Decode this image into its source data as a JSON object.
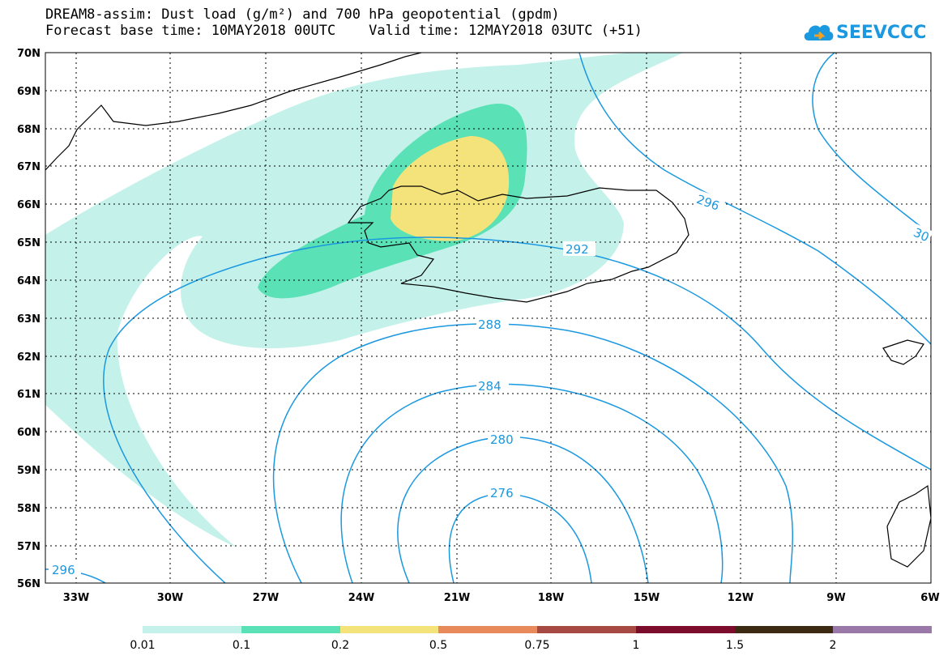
{
  "title_line1": "DREAM8-assim: Dust load (g/m²) and 700 hPa geopotential (gpdm)",
  "title_line2": "Forecast base time: 10MAY2018 00UTC    Valid time: 12MAY2018 03UTC (+51)",
  "logo_text": "SEEVCCC",
  "lat_labels": [
    "70N",
    "69N",
    "68N",
    "67N",
    "66N",
    "65N",
    "64N",
    "63N",
    "62N",
    "61N",
    "60N",
    "59N",
    "58N",
    "57N",
    "56N"
  ],
  "lon_labels": [
    "33W",
    "30W",
    "27W",
    "24W",
    "21W",
    "18W",
    "15W",
    "12W",
    "9W",
    "6W"
  ],
  "contour_labels": [
    "296",
    "292",
    "288",
    "284",
    "280",
    "276",
    "296",
    "30"
  ],
  "colorbar": {
    "labels": [
      "0.01",
      "0.1",
      "0.2",
      "0.5",
      "0.75",
      "1",
      "1.5",
      "2"
    ],
    "colors": [
      "#c4f2ea",
      "#5ae2b6",
      "#f4e37a",
      "#e88a5c",
      "#a84a44",
      "#7c0c2c",
      "#3c2a12",
      "#9a78a8"
    ]
  },
  "colors": {
    "contour": "#1a98e0",
    "dust_low": "#c4f2ea",
    "dust_mid": "#5ae2b6",
    "dust_high": "#f4e37a"
  },
  "icons": [
    "cloud-logo-icon"
  ]
}
